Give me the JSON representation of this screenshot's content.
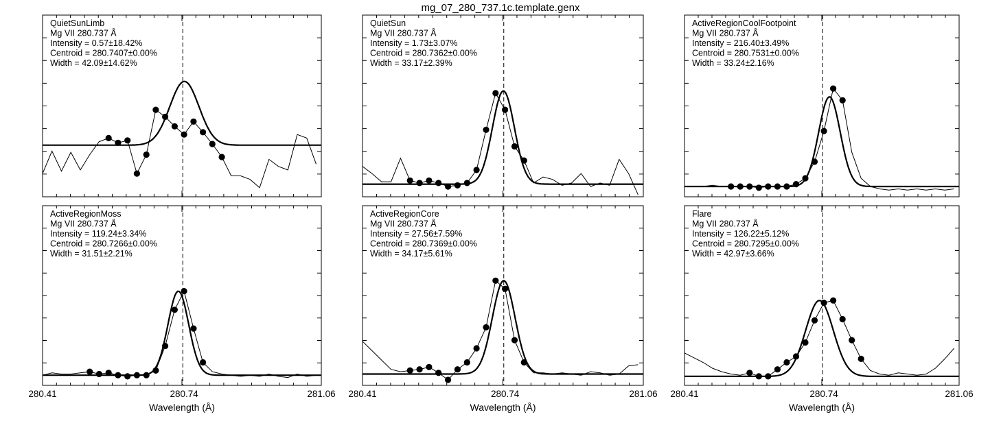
{
  "title": "mg_07_280_737.1c.template.genx",
  "xlabel": "Wavelength (Å)",
  "chart_data": [
    {
      "type": "line",
      "title": "QuietSunLimb",
      "line": "Mg VII 280.737 Å",
      "intensity": "Intensity = 0.57±18.42%",
      "centroid": "Centroid = 280.7407±0.00%",
      "width": "Width = 42.09±14.62%",
      "xlim": [
        280.41,
        281.06
      ],
      "ylim": [
        0,
        1
      ],
      "xticks": [
        "280.41",
        "280.74",
        "281.06"
      ],
      "reference_x": 280.737,
      "data_x": [
        280.41,
        280.432,
        280.454,
        280.476,
        280.498,
        280.52,
        280.542,
        280.564,
        280.586,
        280.608,
        280.63,
        280.652,
        280.674,
        280.696,
        280.718,
        280.74,
        280.762,
        280.784,
        280.806,
        280.828,
        280.85,
        280.872,
        280.894,
        280.916,
        280.938,
        280.96,
        280.982,
        281.004,
        281.026,
        281.048
      ],
      "data_y": [
        0.12,
        0.31,
        0.14,
        0.3,
        0.15,
        0.28,
        0.39,
        0.42,
        0.38,
        0.4,
        0.12,
        0.28,
        0.66,
        0.6,
        0.52,
        0.45,
        0.56,
        0.47,
        0.37,
        0.26,
        0.1,
        0.1,
        0.07,
        0.0,
        0.24,
        0.18,
        0.15,
        0.45,
        0.42,
        0.2
      ],
      "marker_start": 7,
      "marker_end": 19,
      "fit_center": 280.7407,
      "fit_sigma": 0.034,
      "fit_baseline": 0.36,
      "fit_peak": 0.54
    },
    {
      "type": "line",
      "title": "QuietSun",
      "line": "Mg VII 280.737 Å",
      "intensity": "Intensity = 1.73±3.07%",
      "centroid": "Centroid = 280.7362±0.00%",
      "width": "Width = 33.17±2.39%",
      "xlim": [
        280.41,
        281.06
      ],
      "ylim": [
        0,
        1
      ],
      "xticks": [
        "280.41",
        "280.74",
        "281.06"
      ],
      "reference_x": 280.737,
      "data_x": [
        280.41,
        280.432,
        280.454,
        280.476,
        280.498,
        280.52,
        280.542,
        280.564,
        280.586,
        280.608,
        280.63,
        280.652,
        280.674,
        280.696,
        280.718,
        280.74,
        280.762,
        280.784,
        280.806,
        280.828,
        280.85,
        280.872,
        280.894,
        280.916,
        280.938,
        280.96,
        280.982,
        281.004,
        281.026,
        281.048
      ],
      "data_y": [
        0.18,
        0.12,
        0.05,
        0.05,
        0.25,
        0.06,
        0.04,
        0.06,
        0.04,
        0.01,
        0.02,
        0.04,
        0.15,
        0.49,
        0.8,
        0.66,
        0.35,
        0.23,
        0.04,
        0.09,
        0.07,
        0.02,
        0.04,
        0.12,
        0.01,
        0.04,
        0.02,
        0.24,
        0.12,
        -0.06
      ],
      "marker_start": 5,
      "marker_end": 17,
      "fit_center": 280.7362,
      "fit_sigma": 0.0254,
      "fit_baseline": 0.03,
      "fit_peak": 0.79
    },
    {
      "type": "line",
      "title": "ActiveRegionCoolFootpoint",
      "line": "Mg VII 280.737 Å",
      "intensity": "Intensity = 216.40±3.49%",
      "centroid": "Centroid = 280.7531±0.00%",
      "width": "Width = 33.24±2.16%",
      "xlim": [
        280.41,
        281.06
      ],
      "ylim": [
        0,
        1
      ],
      "xticks": [
        "280.41",
        "280.74",
        "281.06"
      ],
      "reference_x": 280.737,
      "data_x": [
        280.41,
        280.432,
        280.454,
        280.476,
        280.498,
        280.52,
        280.542,
        280.564,
        280.586,
        280.608,
        280.63,
        280.652,
        280.674,
        280.696,
        280.718,
        280.74,
        280.762,
        280.784,
        280.806,
        280.828,
        280.85,
        280.872,
        280.894,
        280.916,
        280.938,
        280.96,
        280.982,
        281.004,
        281.026,
        281.048
      ],
      "data_y": [
        0.01,
        0.01,
        0.01,
        0.02,
        0.01,
        0.01,
        0.01,
        0.01,
        0.0,
        0.01,
        0.01,
        0.01,
        0.03,
        0.08,
        0.22,
        0.48,
        0.84,
        0.74,
        0.3,
        0.08,
        0.01,
        -0.01,
        -0.02,
        -0.01,
        -0.02,
        -0.01,
        -0.02,
        -0.01,
        -0.02,
        -0.01
      ],
      "marker_start": 5,
      "marker_end": 17,
      "fit_center": 280.7531,
      "fit_sigma": 0.0255,
      "fit_baseline": 0.01,
      "fit_peak": 0.76
    },
    {
      "type": "line",
      "title": "ActiveRegionMoss",
      "line": "Mg VII 280.737 Å",
      "intensity": "Intensity = 119.24±3.34%",
      "centroid": "Centroid = 280.7266±0.00%",
      "width": "Width = 31.51±2.21%",
      "xlim": [
        280.41,
        281.06
      ],
      "ylim": [
        0,
        1
      ],
      "xticks": [
        "280.41",
        "280.74",
        "281.06"
      ],
      "reference_x": 280.737,
      "data_x": [
        280.41,
        280.432,
        280.454,
        280.476,
        280.498,
        280.52,
        280.542,
        280.564,
        280.586,
        280.608,
        280.63,
        280.652,
        280.674,
        280.696,
        280.718,
        280.74,
        280.762,
        280.784,
        280.806,
        280.828,
        280.85,
        280.872,
        280.894,
        280.916,
        280.938,
        280.96,
        280.982,
        281.004,
        281.026,
        281.048
      ],
      "data_y": [
        0.01,
        0.03,
        0.02,
        0.02,
        0.03,
        0.04,
        0.02,
        0.03,
        0.01,
        0.0,
        0.01,
        0.01,
        0.05,
        0.26,
        0.57,
        0.73,
        0.41,
        0.12,
        0.04,
        0.02,
        0.01,
        0.0,
        0.01,
        0.0,
        0.02,
        0.0,
        -0.01,
        0.02,
        0.0,
        0.01
      ],
      "marker_start": 5,
      "marker_end": 17,
      "fit_center": 280.7266,
      "fit_sigma": 0.0241,
      "fit_baseline": 0.01,
      "fit_peak": 0.72
    },
    {
      "type": "line",
      "title": "ActiveRegionCore",
      "line": "Mg VII 280.737 Å",
      "intensity": "Intensity = 27.56±7.59%",
      "centroid": "Centroid = 280.7369±0.00%",
      "width": "Width = 34.17±5.61%",
      "xlim": [
        280.41,
        281.06
      ],
      "ylim": [
        0,
        1
      ],
      "xticks": [
        "280.41",
        "280.74",
        "281.06"
      ],
      "reference_x": 280.737,
      "data_x": [
        280.41,
        280.432,
        280.454,
        280.476,
        280.498,
        280.52,
        280.542,
        280.564,
        280.586,
        280.608,
        280.63,
        280.652,
        280.674,
        280.696,
        280.718,
        280.74,
        280.762,
        280.784,
        280.806,
        280.828,
        280.85,
        280.872,
        280.894,
        280.916,
        280.938,
        280.96,
        280.982,
        281.004,
        281.026,
        281.048
      ],
      "data_y": [
        0.3,
        0.22,
        0.14,
        0.06,
        0.04,
        0.05,
        0.06,
        0.08,
        0.03,
        -0.03,
        0.06,
        0.12,
        0.24,
        0.42,
        0.82,
        0.75,
        0.31,
        0.12,
        0.03,
        0.03,
        0.02,
        0.03,
        0.02,
        0.01,
        0.04,
        0.03,
        0.01,
        0.02,
        0.09,
        0.1
      ],
      "marker_start": 5,
      "marker_end": 17,
      "fit_center": 280.7369,
      "fit_sigma": 0.0262,
      "fit_baseline": 0.02,
      "fit_peak": 0.8
    },
    {
      "type": "line",
      "title": "Flare",
      "line": "Mg VII 280.737 Å",
      "intensity": "Intensity = 126.22±5.12%",
      "centroid": "Centroid = 280.7295±0.00%",
      "width": "Width = 42.97±3.66%",
      "xlim": [
        280.41,
        281.06
      ],
      "ylim": [
        0,
        1
      ],
      "xticks": [
        "280.41",
        "280.74",
        "281.06"
      ],
      "reference_x": 280.737,
      "data_x": [
        280.41,
        280.432,
        280.454,
        280.476,
        280.498,
        280.52,
        280.542,
        280.564,
        280.586,
        280.608,
        280.63,
        280.652,
        280.674,
        280.696,
        280.718,
        280.74,
        280.762,
        280.784,
        280.806,
        280.828,
        280.85,
        280.872,
        280.894,
        280.916,
        280.938,
        280.96,
        280.982,
        281.004,
        281.026,
        281.048
      ],
      "data_y": [
        0.2,
        0.16,
        0.12,
        0.07,
        0.04,
        0.02,
        0.01,
        0.03,
        0.0,
        0.0,
        0.06,
        0.12,
        0.17,
        0.29,
        0.48,
        0.63,
        0.65,
        0.49,
        0.31,
        0.15,
        0.05,
        0.02,
        0.01,
        0.03,
        0.02,
        0.01,
        0.02,
        0.07,
        0.15,
        0.24
      ],
      "marker_start": 7,
      "marker_end": 19,
      "fit_center": 280.7295,
      "fit_sigma": 0.0327,
      "fit_baseline": 0.0,
      "fit_peak": 0.65
    }
  ]
}
